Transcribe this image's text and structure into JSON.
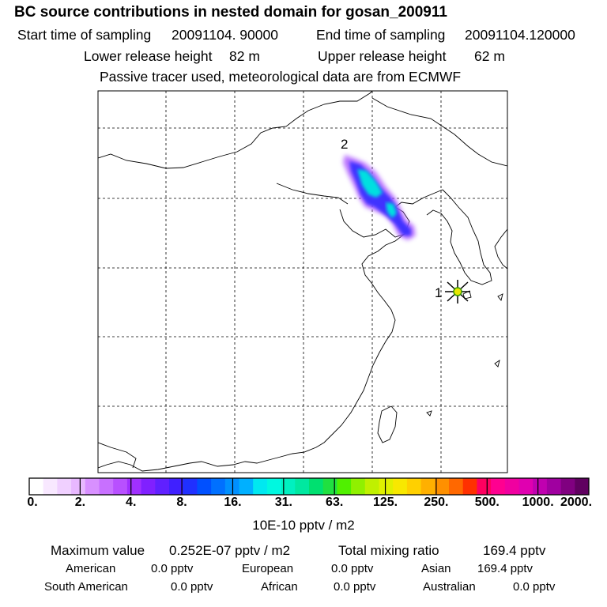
{
  "header": {
    "title": "BC  source contributions in nested domain for gosan_200911",
    "start_label": "Start time of sampling",
    "start_value": "20091104. 90000",
    "end_label": "End time of sampling",
    "end_value": "20091104.120000",
    "lower_label": "Lower release height",
    "lower_value": "82 m",
    "upper_label": "Upper release height",
    "upper_value": "62 m",
    "note": "Passive tracer used, meteorological data are from ECMWF"
  },
  "map": {
    "marker_1_label": "1",
    "marker_2_label": "2",
    "receptor_color": "#e8e800",
    "plume_core_color": "#00e0e0",
    "plume_edge_color": "#a020f0"
  },
  "colorbar": {
    "ticks": [
      "0.",
      "2.",
      "4.",
      "8.",
      "16.",
      "31.",
      "63.",
      "125.",
      "250.",
      "500.",
      "1000.",
      "2000."
    ],
    "colors": [
      "#ffffff",
      "#f8e8ff",
      "#f0d0ff",
      "#e8b8ff",
      "#d890ff",
      "#c870ff",
      "#b850ff",
      "#a030ff",
      "#8020ff",
      "#6020ff",
      "#4020ff",
      "#2030ff",
      "#0050ff",
      "#0070ff",
      "#0090ff",
      "#00b0ff",
      "#00e8f0",
      "#00f8e0",
      "#00f0c0",
      "#00e8a0",
      "#00e070",
      "#20e040",
      "#50f000",
      "#90f000",
      "#c0f000",
      "#e0f000",
      "#f8e800",
      "#ffd000",
      "#ffb000",
      "#ff9000",
      "#ff6800",
      "#ff3000",
      "#ff0060",
      "#ff0090",
      "#f000a0",
      "#e000b0",
      "#c000b0",
      "#a000a0",
      "#800080",
      "#600060"
    ],
    "unit": "10E-10 pptv / m2"
  },
  "stats": {
    "max_label": "Maximum value",
    "max_value": "0.252E-07 pptv / m2",
    "total_label": "Total mixing ratio",
    "total_value": "169.4 pptv",
    "regions": [
      {
        "name": "American",
        "value": "0.0 pptv"
      },
      {
        "name": "European",
        "value": "0.0 pptv"
      },
      {
        "name": "Asian",
        "value": "169.4 pptv"
      },
      {
        "name": "South American",
        "value": "0.0 pptv"
      },
      {
        "name": "African",
        "value": "0.0 pptv"
      },
      {
        "name": "Australian",
        "value": "0.0 pptv"
      }
    ]
  }
}
